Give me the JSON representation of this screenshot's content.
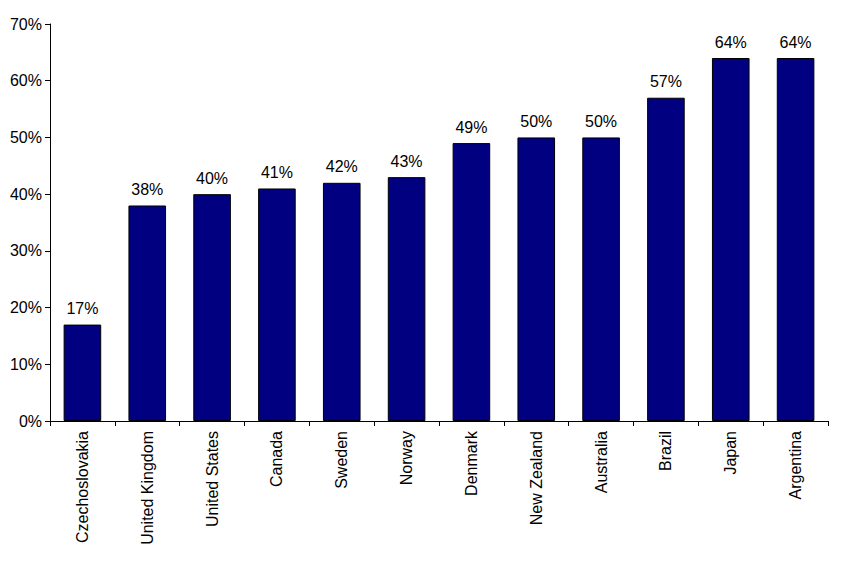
{
  "chart_data": {
    "type": "bar",
    "categories": [
      "Czechoslovakia",
      "United Kingdom",
      "United States",
      "Canada",
      "Sweden",
      "Norway",
      "Denmark",
      "New Zealand",
      "Australia",
      "Brazil",
      "Japan",
      "Argentina"
    ],
    "values": [
      17,
      38,
      40,
      41,
      42,
      43,
      49,
      50,
      50,
      57,
      64,
      64
    ],
    "value_labels": [
      "17%",
      "38%",
      "40%",
      "41%",
      "42%",
      "43%",
      "49%",
      "50%",
      "50%",
      "57%",
      "64%",
      "64%"
    ],
    "color": "#000080",
    "ylim": [
      0,
      70
    ],
    "yticks": [
      {
        "value": 0,
        "label": "0%"
      },
      {
        "value": 10,
        "label": "10%"
      },
      {
        "value": 20,
        "label": "20%"
      },
      {
        "value": 30,
        "label": "30%"
      },
      {
        "value": 40,
        "label": "40%"
      },
      {
        "value": 50,
        "label": "50%"
      },
      {
        "value": 60,
        "label": "60%"
      },
      {
        "value": 70,
        "label": "70%"
      }
    ],
    "grid": false,
    "data_labels": true
  }
}
